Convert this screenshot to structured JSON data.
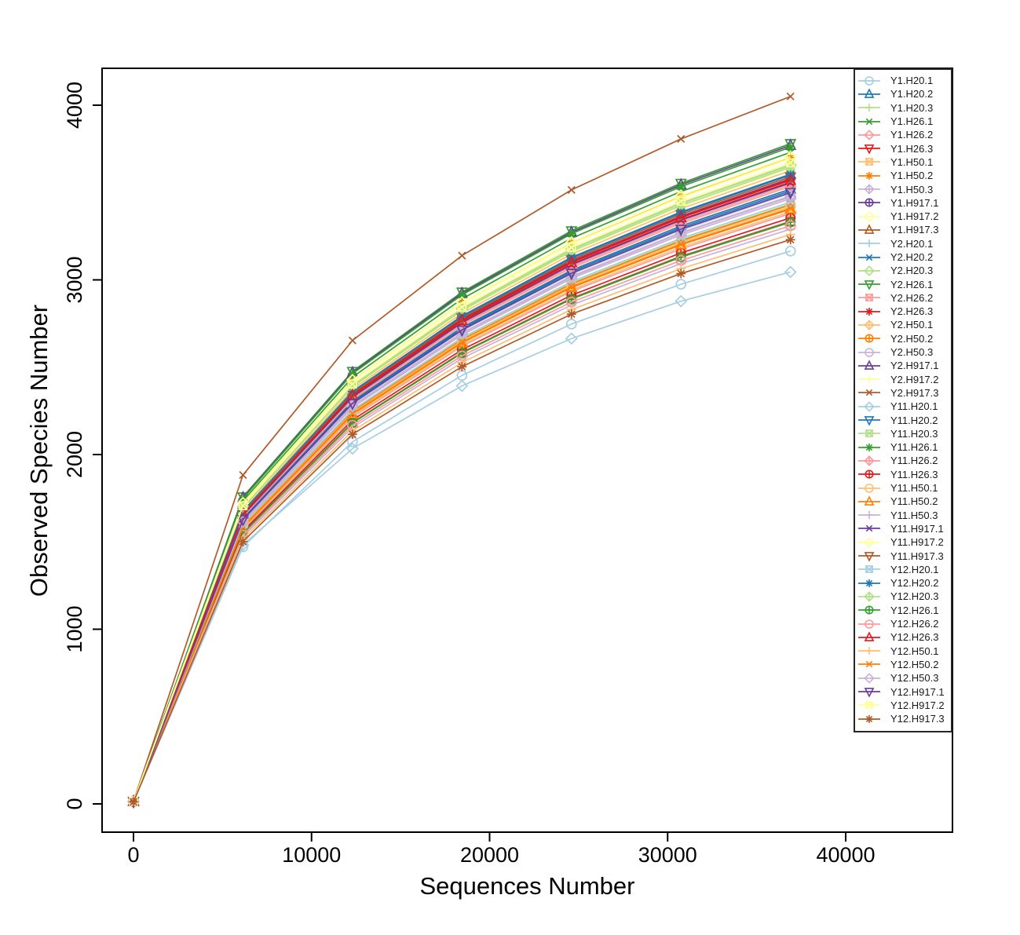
{
  "figure": {
    "background": "#ffffff",
    "frame_color": "#000000"
  },
  "chart_data": {
    "type": "line",
    "title": "",
    "xlabel": "Sequences Number",
    "ylabel": "Observed Species Number",
    "x_ticks": [
      0,
      10000,
      20000,
      30000,
      40000
    ],
    "y_ticks": [
      0,
      1000,
      2000,
      3000,
      4000
    ],
    "xlim": [
      0,
      45900
    ],
    "ylim": [
      0,
      4210
    ],
    "grid": false,
    "legend_position": "top-right",
    "palette_name": "Paired",
    "palette": [
      "#A6CEE3",
      "#1F78B4",
      "#B2DF8A",
      "#33A02C",
      "#FB9A99",
      "#E31A1C",
      "#FDBF6F",
      "#FF7F00",
      "#CAB2D6",
      "#6A3D9A",
      "#FFFF99",
      "#B15928"
    ],
    "x": [
      1,
      6150,
      12300,
      18450,
      24600,
      30750,
      36900
    ],
    "series": [
      {
        "name": "Y1.H20.1",
        "color": "#A6CEE3",
        "marker": "circle",
        "values": [
          12,
          1472,
          2073,
          2453,
          2747,
          2975,
          3165
        ]
      },
      {
        "name": "Y1.H20.2",
        "color": "#1F78B4",
        "marker": "triangle-up",
        "values": [
          14,
          1637,
          2306,
          2728,
          3055,
          3309,
          3520
        ]
      },
      {
        "name": "Y1.H20.3",
        "color": "#B2DF8A",
        "marker": "plus",
        "values": [
          13,
          1597,
          2250,
          2662,
          2982,
          3229,
          3435
        ]
      },
      {
        "name": "Y1.H26.1",
        "color": "#33A02C",
        "marker": "x",
        "values": [
          15,
          1734,
          2443,
          2891,
          3238,
          3506,
          3730
        ]
      },
      {
        "name": "Y1.H26.2",
        "color": "#FB9A99",
        "marker": "diamond",
        "values": [
          13,
          1572,
          2214,
          2620,
          2934,
          3177,
          3380
        ]
      },
      {
        "name": "Y1.H26.3",
        "color": "#E31A1C",
        "marker": "triangle-down",
        "values": [
          14,
          1655,
          2332,
          2759,
          3090,
          3346,
          3560
        ]
      },
      {
        "name": "Y1.H50.1",
        "color": "#FDBF6F",
        "marker": "square-x",
        "values": [
          14,
          1686,
          2374,
          2809,
          3147,
          3408,
          3625
        ]
      },
      {
        "name": "Y1.H50.2",
        "color": "#FF7F00",
        "marker": "asterisk",
        "values": [
          15,
          1721,
          2424,
          2868,
          3212,
          3478,
          3700
        ]
      },
      {
        "name": "Y1.H50.3",
        "color": "#CAB2D6",
        "marker": "diamond-plus",
        "values": [
          13,
          1611,
          2270,
          2685,
          3008,
          3257,
          3465
        ]
      },
      {
        "name": "Y1.H917.1",
        "color": "#6A3D9A",
        "marker": "circle-plus",
        "values": [
          14,
          1665,
          2345,
          2775,
          3107,
          3365,
          3580
        ]
      },
      {
        "name": "Y1.H917.2",
        "color": "#FFFF99",
        "marker": "circle",
        "values": [
          15,
          1718,
          2420,
          2864,
          3207,
          3473,
          3695
        ]
      },
      {
        "name": "Y1.H917.3",
        "color": "#B15928",
        "marker": "triangle-up",
        "values": [
          13,
          1551,
          2184,
          2585,
          2895,
          3135,
          3335
        ]
      },
      {
        "name": "Y2.H20.1",
        "color": "#A6CEE3",
        "marker": "plus",
        "values": [
          13,
          1625,
          2289,
          2709,
          3034,
          3285,
          3495
        ]
      },
      {
        "name": "Y2.H20.2",
        "color": "#1F78B4",
        "marker": "x",
        "values": [
          14,
          1674,
          2358,
          2790,
          3125,
          3384,
          3600
        ]
      },
      {
        "name": "Y2.H20.3",
        "color": "#B2DF8A",
        "marker": "diamond",
        "values": [
          14,
          1700,
          2394,
          2833,
          3173,
          3436,
          3655
        ]
      },
      {
        "name": "Y2.H26.1",
        "color": "#33A02C",
        "marker": "triangle-down",
        "values": [
          15,
          1758,
          2476,
          2930,
          3281,
          3553,
          3780
        ]
      },
      {
        "name": "Y2.H26.2",
        "color": "#FB9A99",
        "marker": "square-x",
        "values": [
          14,
          1648,
          2322,
          2747,
          3077,
          3332,
          3545
        ]
      },
      {
        "name": "Y2.H26.3",
        "color": "#E31A1C",
        "marker": "asterisk",
        "values": [
          14,
          1662,
          2342,
          2771,
          3103,
          3361,
          3575
        ]
      },
      {
        "name": "Y2.H50.1",
        "color": "#FDBF6F",
        "marker": "diamond-plus",
        "values": [
          13,
          1576,
          2220,
          2627,
          2943,
          3187,
          3390
        ]
      },
      {
        "name": "Y2.H50.2",
        "color": "#FF7F00",
        "marker": "circle-plus",
        "values": [
          13,
          1595,
          2247,
          2658,
          2977,
          3224,
          3430
        ]
      },
      {
        "name": "Y2.H50.3",
        "color": "#CAB2D6",
        "marker": "circle",
        "values": [
          13,
          1618,
          2279,
          2697,
          3021,
          3271,
          3480
        ]
      },
      {
        "name": "Y2.H917.1",
        "color": "#6A3D9A",
        "marker": "triangle-up",
        "values": [
          15,
          1753,
          2469,
          2922,
          3272,
          3544,
          3770
        ]
      },
      {
        "name": "Y2.H917.2",
        "color": "#FFFF99",
        "marker": "plus",
        "values": [
          14,
          1693,
          2384,
          2821,
          3160,
          3422,
          3640
        ]
      },
      {
        "name": "Y2.H917.3",
        "color": "#B15928",
        "marker": "x",
        "values": [
          16,
          1883,
          2653,
          3139,
          3515,
          3807,
          4050
        ]
      },
      {
        "name": "Y11.H20.1",
        "color": "#A6CEE3",
        "marker": "diamond",
        "values": [
          12,
          1483,
          2034,
          2393,
          2664,
          2878,
          3045
        ]
      },
      {
        "name": "Y11.H20.2",
        "color": "#1F78B4",
        "marker": "triangle-down",
        "values": [
          13,
          1632,
          2299,
          2720,
          3047,
          3299,
          3510
        ]
      },
      {
        "name": "Y11.H20.3",
        "color": "#B2DF8A",
        "marker": "square-x",
        "values": [
          14,
          1695,
          2388,
          2825,
          3164,
          3426,
          3645
        ]
      },
      {
        "name": "Y11.H26.1",
        "color": "#33A02C",
        "marker": "asterisk",
        "values": [
          15,
          1748,
          2463,
          2914,
          3264,
          3534,
          3760
        ]
      },
      {
        "name": "Y11.H26.2",
        "color": "#FB9A99",
        "marker": "diamond-plus",
        "values": [
          14,
          1644,
          2315,
          2740,
          3068,
          3323,
          3535
        ]
      },
      {
        "name": "Y11.H26.3",
        "color": "#E31A1C",
        "marker": "circle-plus",
        "values": [
          13,
          1560,
          2198,
          2600,
          2912,
          3154,
          3355
        ]
      },
      {
        "name": "Y11.H50.1",
        "color": "#FDBF6F",
        "marker": "circle",
        "values": [
          13,
          1590,
          2240,
          2651,
          2969,
          3215,
          3420
        ]
      },
      {
        "name": "Y11.H50.2",
        "color": "#FF7F00",
        "marker": "triangle-up",
        "values": [
          13,
          1583,
          2230,
          2639,
          2956,
          3201,
          3405
        ]
      },
      {
        "name": "Y11.H50.3",
        "color": "#CAB2D6",
        "marker": "plus",
        "values": [
          13,
          1530,
          2155,
          2550,
          2856,
          3093,
          3290
        ]
      },
      {
        "name": "Y11.H917.1",
        "color": "#6A3D9A",
        "marker": "x",
        "values": [
          14,
          1653,
          2329,
          2755,
          3086,
          3342,
          3555
        ]
      },
      {
        "name": "Y11.H917.2",
        "color": "#FFFF99",
        "marker": "diamond",
        "values": [
          15,
          1723,
          2427,
          2871,
          3216,
          3483,
          3705
        ]
      },
      {
        "name": "Y11.H917.3",
        "color": "#B15928",
        "marker": "triangle-down",
        "values": [
          14,
          1669,
          2351,
          2782,
          3116,
          3375,
          3590
        ]
      },
      {
        "name": "Y12.H20.1",
        "color": "#A6CEE3",
        "marker": "square-x",
        "values": [
          13,
          1602,
          2256,
          2670,
          2990,
          3238,
          3445
        ]
      },
      {
        "name": "Y12.H20.2",
        "color": "#1F78B4",
        "marker": "asterisk",
        "values": [
          14,
          1676,
          2361,
          2794,
          3129,
          3389,
          3605
        ]
      },
      {
        "name": "Y12.H20.3",
        "color": "#B2DF8A",
        "marker": "diamond-plus",
        "values": [
          14,
          1702,
          2397,
          2837,
          3177,
          3440,
          3660
        ]
      },
      {
        "name": "Y12.H26.1",
        "color": "#33A02C",
        "marker": "circle-plus",
        "values": [
          13,
          1548,
          2181,
          2581,
          2890,
          3130,
          3330
        ]
      },
      {
        "name": "Y12.H26.2",
        "color": "#FB9A99",
        "marker": "circle",
        "values": [
          13,
          1539,
          2168,
          2565,
          2873,
          3111,
          3310
        ]
      },
      {
        "name": "Y12.H26.3",
        "color": "#E31A1C",
        "marker": "triangle-up",
        "values": [
          14,
          1660,
          2338,
          2767,
          3099,
          3356,
          3570
        ]
      },
      {
        "name": "Y12.H50.1",
        "color": "#FDBF6F",
        "marker": "plus",
        "values": [
          13,
          1516,
          2135,
          2527,
          2830,
          3064,
          3260
        ]
      },
      {
        "name": "Y12.H50.2",
        "color": "#FF7F00",
        "marker": "x",
        "values": [
          13,
          1586,
          2234,
          2643,
          2960,
          3205,
          3410
        ]
      },
      {
        "name": "Y12.H50.3",
        "color": "#CAB2D6",
        "marker": "diamond",
        "values": [
          13,
          1616,
          2276,
          2693,
          3016,
          3267,
          3475
        ]
      },
      {
        "name": "Y12.H917.1",
        "color": "#6A3D9A",
        "marker": "triangle-down",
        "values": [
          13,
          1628,
          2293,
          2713,
          3038,
          3290,
          3500
        ]
      },
      {
        "name": "Y12.H917.2",
        "color": "#FFFF99",
        "marker": "square-x",
        "values": [
          15,
          1707,
          2404,
          2844,
          3186,
          3450,
          3670
        ]
      },
      {
        "name": "Y12.H917.3",
        "color": "#B15928",
        "marker": "asterisk",
        "values": [
          12,
          1502,
          2116,
          2503,
          2804,
          3036,
          3230
        ]
      }
    ]
  }
}
